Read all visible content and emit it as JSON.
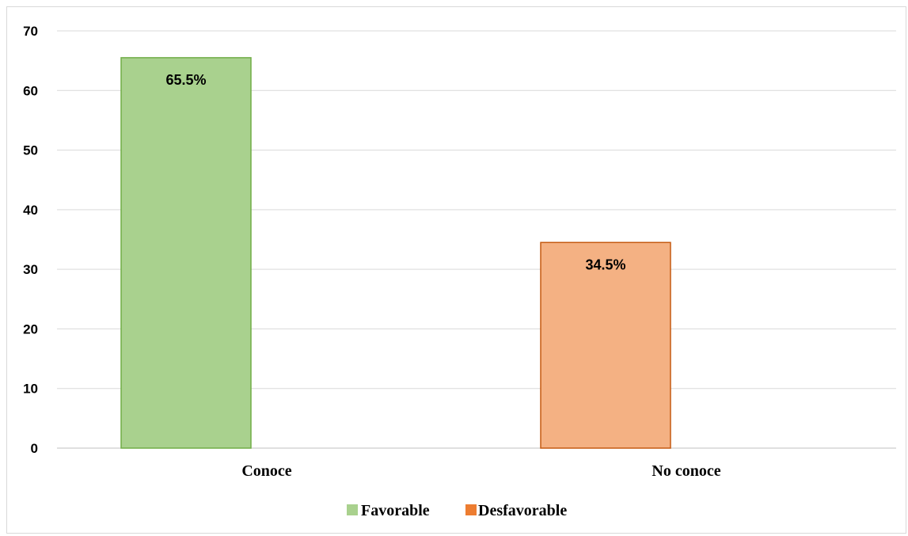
{
  "chart_data": {
    "type": "bar",
    "title": "",
    "xlabel": "",
    "ylabel": "",
    "categories": [
      "Conoce",
      "No conoce"
    ],
    "values": [
      65.5,
      34.5
    ],
    "data_labels": [
      "65.5%",
      "34.5%"
    ],
    "bar_colors": [
      "#a9d18e",
      "#f4b183"
    ],
    "bar_border_colors": [
      "#70ad47",
      "#c55a11"
    ],
    "ylim": [
      0,
      70
    ],
    "yticks": [
      0,
      10,
      20,
      30,
      40,
      50,
      60,
      70
    ],
    "ytick_labels": [
      "0",
      "10",
      "20",
      "30",
      "40",
      "50",
      "60",
      "70"
    ],
    "grid": true,
    "legend_position": "bottom",
    "legend": [
      {
        "label": "Favorable",
        "color": "#a9d18e"
      },
      {
        "label": "Desfavorable",
        "color": "#ed7d31"
      }
    ]
  }
}
